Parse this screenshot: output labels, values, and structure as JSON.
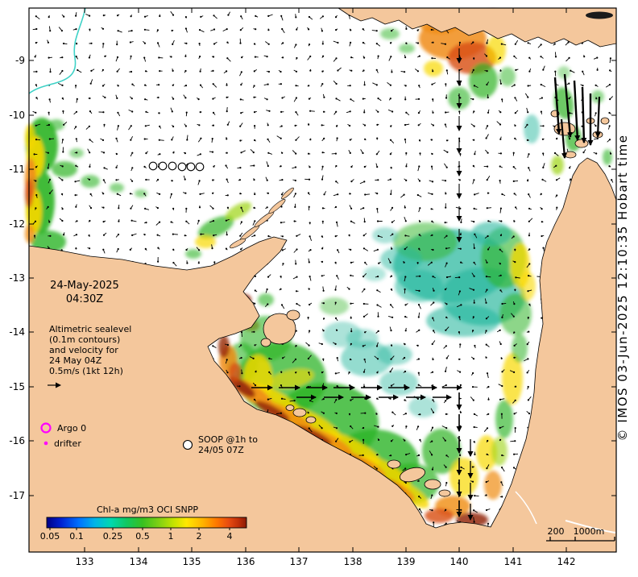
{
  "axes": {
    "lat": [
      "-9",
      "-10",
      "-11",
      "-12",
      "-13",
      "-14",
      "-15",
      "-16",
      "-17"
    ],
    "lon": [
      "133",
      "134",
      "135",
      "136",
      "137",
      "138",
      "139",
      "140",
      "141",
      "142"
    ]
  },
  "datetime": {
    "date": "24-May-2025",
    "time": "04:30Z"
  },
  "info": {
    "line1": "Altimetric sealevel",
    "line2": "(0.1m contours)",
    "line3": "and velocity for",
    "line4": "24 May 04Z",
    "line5": "0.5m/s (1kt 12h)"
  },
  "legend": {
    "argo": "Argo 0",
    "drifter": "drifter",
    "soop1": "SOOP @1h to",
    "soop2": "24/05 07Z"
  },
  "colorbar": {
    "title": "Chl-a mg/m3 OCI SNPP",
    "ticks": [
      "0.05",
      "0.1",
      "0.25",
      "0.5",
      "1",
      "2",
      "4"
    ]
  },
  "scalebar": {
    "t200": "200",
    "t1000": "1000m"
  },
  "credit": "© IMOS 03-Jun-2025 12:10:35 Hobart time",
  "colors": {
    "land": "#f4c79c",
    "ocean": "#ffffff",
    "sealevel_contour_highlight": "#3fd2c7",
    "vectors": "#000000",
    "argo_marker": "#ff00ff",
    "drifter_marker": "#ff00ff",
    "colorbar_title": "#8b8000",
    "chl_palette": [
      "#000085",
      "#0070ff",
      "#00d8b0",
      "#38c020",
      "#ffe800",
      "#ffb400",
      "#e84c10",
      "#8a1a04"
    ]
  }
}
